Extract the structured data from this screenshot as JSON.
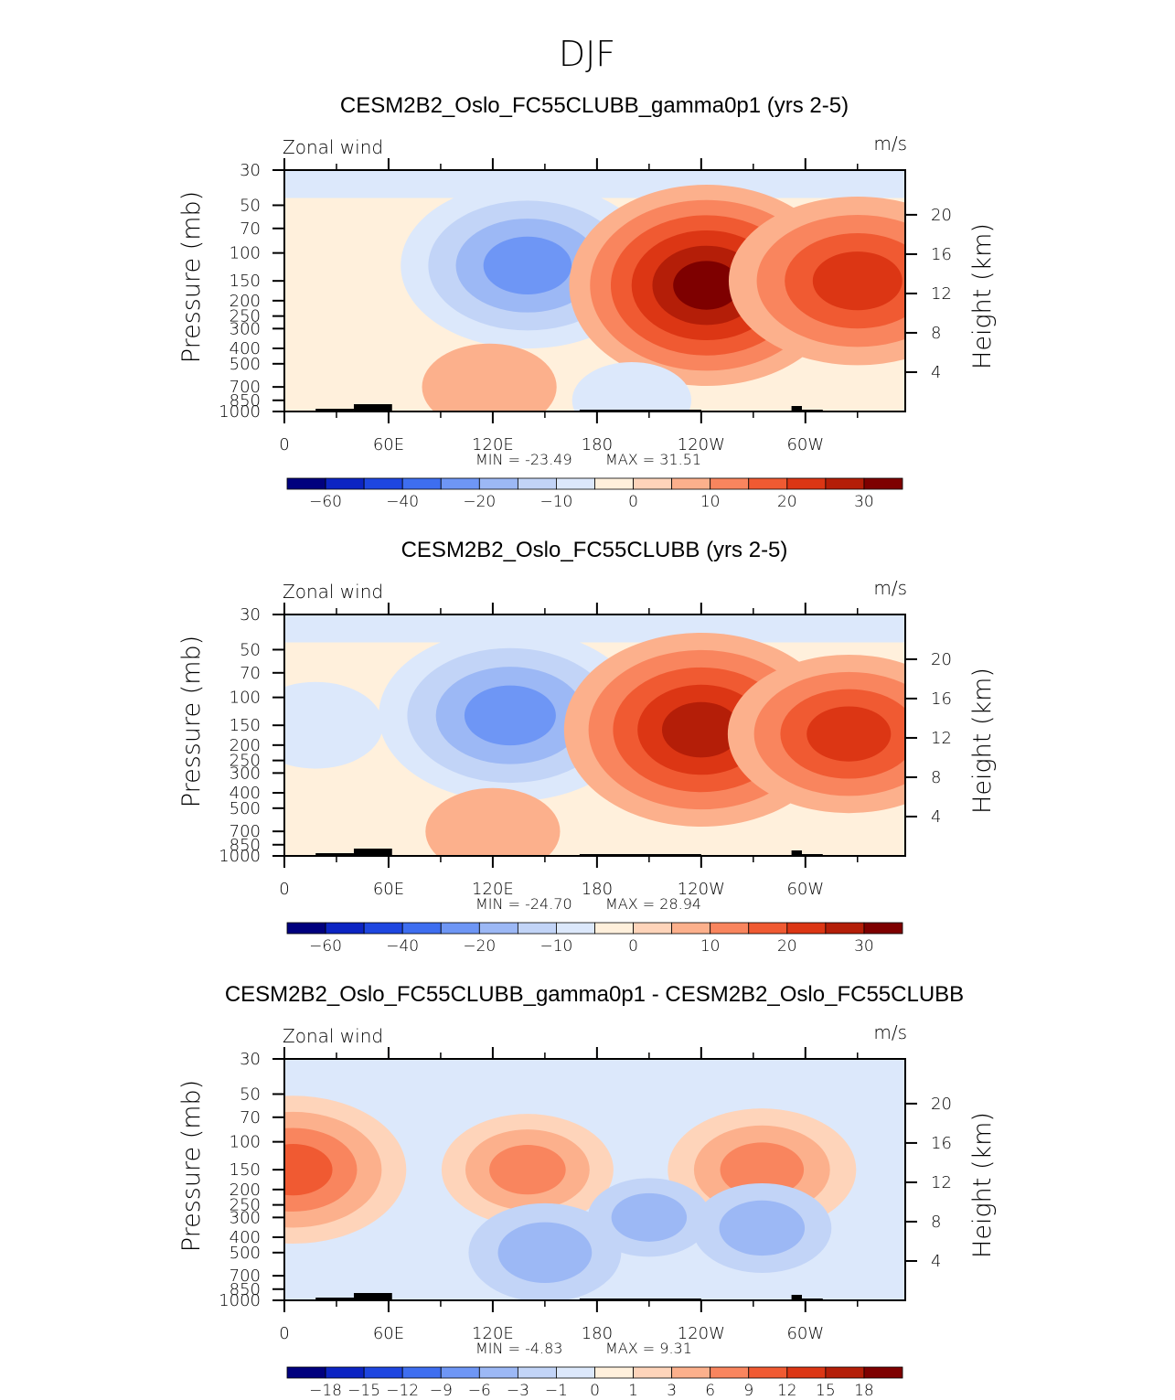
{
  "figure_title": "DJF",
  "colors": {
    "abs_scale": [
      "#00007e",
      "#0c24c3",
      "#1e46e0",
      "#3e6ef0",
      "#6e96f5",
      "#9cb8f5",
      "#c2d4f7",
      "#dce8fb",
      "#fff0dc",
      "#fed4ba",
      "#fcb08c",
      "#f9855e",
      "#f05a32",
      "#dc3614",
      "#b41e08",
      "#7e0000"
    ],
    "diff_scale": [
      "#00007e",
      "#0c24c3",
      "#1e46e0",
      "#3e6ef0",
      "#6e96f5",
      "#9cb8f5",
      "#c2d4f7",
      "#dce8fb",
      "#fff0dc",
      "#fed4ba",
      "#fcb08c",
      "#f9855e",
      "#f05a32",
      "#dc3614",
      "#b41e08",
      "#7e0000"
    ]
  },
  "chart_data": [
    {
      "type": "heatmap",
      "title": "CESM2B2_Oslo_FC55CLUBB_gamma0p1 (yrs 2-5)",
      "variable_label": "Zonal wind",
      "units_label": "m/s",
      "ylabel_left": "Pressure (mb)",
      "ylabel_right": "Height (km)",
      "x_ticks": [
        "0",
        "60E",
        "120E",
        "180",
        "120W",
        "60W"
      ],
      "pressure_ticks": [
        "30",
        "50",
        "70",
        "100",
        "150",
        "200",
        "250",
        "300",
        "400",
        "500",
        "700",
        "850",
        "1000"
      ],
      "height_ticks": [
        "20",
        "16",
        "12",
        "8",
        "4"
      ],
      "min_label": "MIN  =   -23.49",
      "max_label": "MAX  =    31.51",
      "colorbar_labels": [
        "-60",
        "-40",
        "-20",
        "-10",
        "0",
        "10",
        "20",
        "30"
      ],
      "colorbar_levels": [
        -70,
        -60,
        -50,
        -40,
        -30,
        -20,
        -15,
        -10,
        -5,
        0,
        5,
        10,
        15,
        20,
        25,
        30
      ],
      "features": [
        {
          "lon": 140,
          "p": 120,
          "value": -23.49
        },
        {
          "lon": 243,
          "p": 160,
          "value": 31.51
        },
        {
          "lon": 330,
          "p": 150,
          "value": 24
        },
        {
          "lon": 118,
          "p": 700,
          "value": 8
        },
        {
          "lon": 200,
          "p": 850,
          "value": -6
        }
      ]
    },
    {
      "type": "heatmap",
      "title": "CESM2B2_Oslo_FC55CLUBB (yrs 2-5)",
      "variable_label": "Zonal wind",
      "units_label": "m/s",
      "ylabel_left": "Pressure (mb)",
      "ylabel_right": "Height (km)",
      "x_ticks": [
        "0",
        "60E",
        "120E",
        "180",
        "120W",
        "60W"
      ],
      "pressure_ticks": [
        "30",
        "50",
        "70",
        "100",
        "150",
        "200",
        "250",
        "300",
        "400",
        "500",
        "700",
        "850",
        "1000"
      ],
      "height_ticks": [
        "20",
        "16",
        "12",
        "8",
        "4"
      ],
      "min_label": "MIN  =   -24.70",
      "max_label": "MAX  =    28.94",
      "colorbar_labels": [
        "-60",
        "-40",
        "-20",
        "-10",
        "0",
        "10",
        "20",
        "30"
      ],
      "colorbar_levels": [
        -70,
        -60,
        -50,
        -40,
        -30,
        -20,
        -15,
        -10,
        -5,
        0,
        5,
        10,
        15,
        20,
        25,
        30
      ],
      "features": [
        {
          "lon": 130,
          "p": 130,
          "value": -24.7
        },
        {
          "lon": 240,
          "p": 160,
          "value": 28.94
        },
        {
          "lon": 325,
          "p": 170,
          "value": 22
        },
        {
          "lon": 18,
          "p": 150,
          "value": -8
        },
        {
          "lon": 120,
          "p": 700,
          "value": 8
        }
      ]
    },
    {
      "type": "heatmap",
      "title": "CESM2B2_Oslo_FC55CLUBB_gamma0p1 - CESM2B2_Oslo_FC55CLUBB",
      "variable_label": "Zonal wind",
      "units_label": "m/s",
      "ylabel_left": "Pressure (mb)",
      "ylabel_right": "Height (km)",
      "x_ticks": [
        "0",
        "60E",
        "120E",
        "180",
        "120W",
        "60W"
      ],
      "pressure_ticks": [
        "30",
        "50",
        "70",
        "100",
        "150",
        "200",
        "250",
        "300",
        "400",
        "500",
        "700",
        "850",
        "1000"
      ],
      "height_ticks": [
        "20",
        "16",
        "12",
        "8",
        "4"
      ],
      "min_label": "MIN  =    -4.83",
      "max_label": "MAX  =     9.31",
      "colorbar_labels": [
        "-18",
        "-15",
        "-12",
        "-9",
        "-6",
        "-3",
        "-1",
        "0",
        "1",
        "3",
        "6",
        "9",
        "12",
        "15",
        "18"
      ],
      "colorbar_levels": [
        -21,
        -18,
        -15,
        -12,
        -9,
        -6,
        -3,
        -1,
        0,
        1,
        3,
        6,
        9,
        12,
        15,
        18
      ],
      "features": [
        {
          "lon": 5,
          "p": 150,
          "value": 9.31
        },
        {
          "lon": 140,
          "p": 150,
          "value": 6
        },
        {
          "lon": 275,
          "p": 150,
          "value": 7
        },
        {
          "lon": 150,
          "p": 500,
          "value": -4.83
        },
        {
          "lon": 210,
          "p": 300,
          "value": -3
        },
        {
          "lon": 275,
          "p": 350,
          "value": -4
        }
      ]
    }
  ]
}
